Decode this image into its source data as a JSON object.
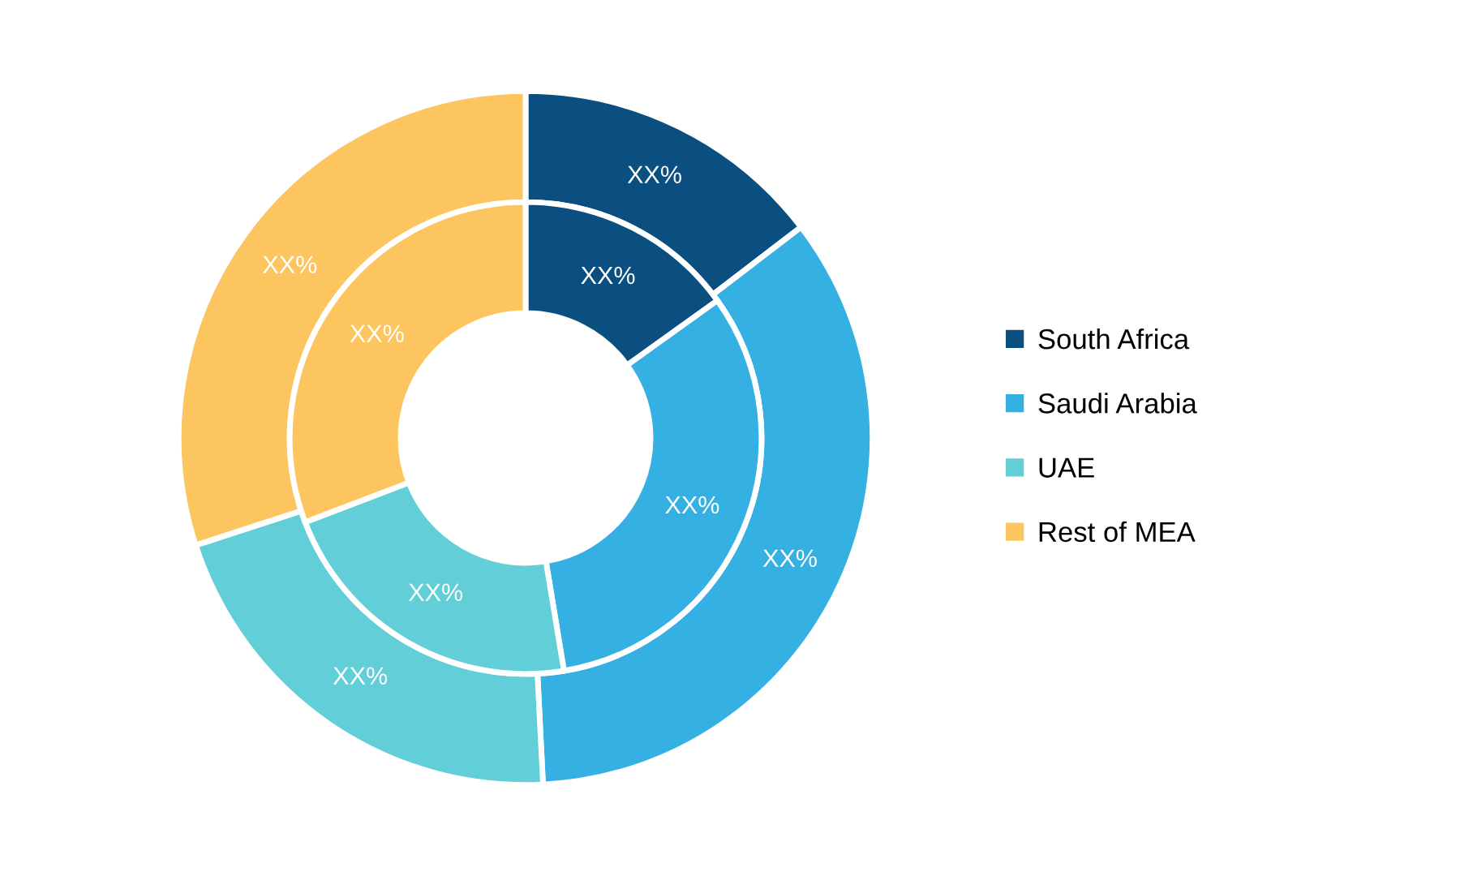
{
  "chart_data": {
    "type": "donut",
    "categories": [
      "South Africa",
      "Saudi Arabia",
      "UAE",
      "Rest of MEA"
    ],
    "colors": [
      "#0b4f80",
      "#35b0e2",
      "#62cfd8",
      "#fdc55f"
    ],
    "series": [
      {
        "values": [
          14.6,
          34.6,
          20.8,
          30.0
        ],
        "value_labels": [
          "XX%",
          "XX%",
          "XX%",
          "XX%"
        ]
      },
      {
        "values": [
          15.1,
          32.3,
          21.8,
          30.8
        ],
        "value_labels": [
          "XX%",
          "XX%",
          "XX%",
          "XX%"
        ]
      }
    ],
    "legend": "right"
  }
}
